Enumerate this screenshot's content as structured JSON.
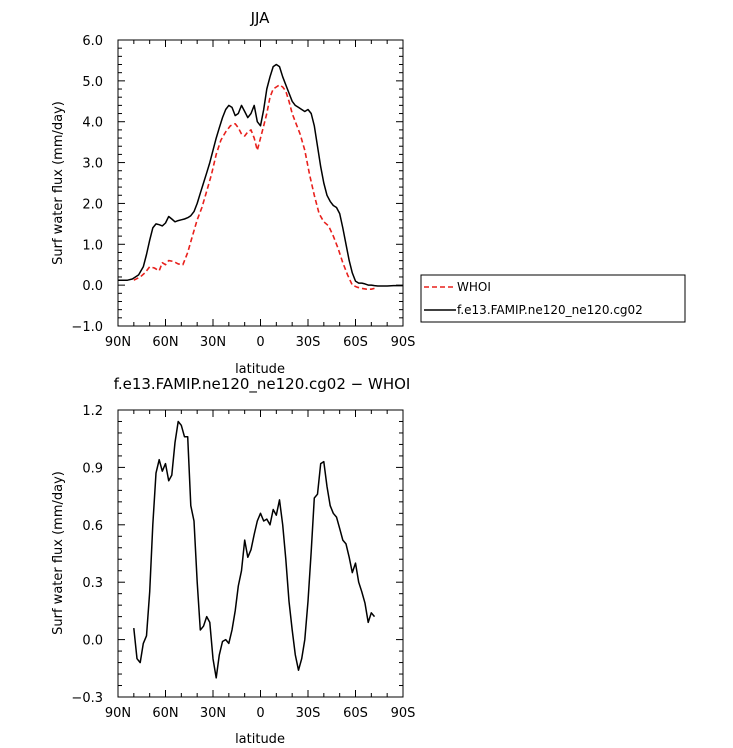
{
  "chart_data": [
    {
      "type": "line",
      "title": "JJA",
      "xlabel": "latitude",
      "ylabel": "Surf water flux (mm/day)",
      "xlim": [
        90,
        -90
      ],
      "ylim": [
        -1.0,
        6.0
      ],
      "xticks": [
        90,
        60,
        30,
        0,
        -30,
        -60,
        -90
      ],
      "xtick_labels": [
        "90N",
        "60N",
        "30N",
        "0",
        "30S",
        "60S",
        "90S"
      ],
      "yticks": [
        -1.0,
        0.0,
        1.0,
        2.0,
        3.0,
        4.0,
        5.0,
        6.0
      ],
      "ytick_labels": [
        "−1.0",
        "0.0",
        "1.0",
        "2.0",
        "3.0",
        "4.0",
        "5.0",
        "6.0"
      ],
      "legend_position": "right",
      "series": [
        {
          "name": "WHOI",
          "color": "#e8201c",
          "style": "dashed",
          "x": [
            80,
            76,
            73,
            70,
            67,
            64,
            62,
            60,
            58,
            55,
            52,
            49,
            46,
            43,
            40,
            37,
            34,
            31,
            28,
            25,
            22,
            19,
            16,
            14,
            12,
            10,
            8,
            6,
            4,
            2,
            0,
            -2,
            -4,
            -6,
            -8,
            -10,
            -12,
            -14,
            -16,
            -18,
            -20,
            -22,
            -25,
            -28,
            -31,
            -34,
            -37,
            -40,
            -43,
            -46,
            -49,
            -52,
            -55,
            -58,
            -61,
            -64,
            -67,
            -70,
            -72
          ],
          "values": [
            0.12,
            0.2,
            0.3,
            0.45,
            0.42,
            0.35,
            0.55,
            0.5,
            0.6,
            0.58,
            0.52,
            0.5,
            0.8,
            1.2,
            1.6,
            1.9,
            2.3,
            2.7,
            3.2,
            3.55,
            3.75,
            3.9,
            3.95,
            3.85,
            3.7,
            3.65,
            3.75,
            3.8,
            3.6,
            3.3,
            3.6,
            3.9,
            4.2,
            4.6,
            4.8,
            4.85,
            4.9,
            4.85,
            4.75,
            4.5,
            4.2,
            4.0,
            3.7,
            3.3,
            2.7,
            2.2,
            1.75,
            1.55,
            1.45,
            1.2,
            0.9,
            0.55,
            0.25,
            0.0,
            -0.05,
            -0.08,
            -0.1,
            -0.1,
            -0.08
          ]
        },
        {
          "name": "f.e13.FAMIP.ne120_ne120.cg02",
          "color": "#000000",
          "style": "solid",
          "x": [
            90,
            84,
            81,
            79,
            77,
            74,
            72,
            70,
            68,
            66,
            64,
            62,
            60,
            58,
            56,
            54,
            52,
            50,
            48,
            46,
            44,
            42,
            40,
            38,
            36,
            34,
            32,
            30,
            28,
            26,
            24,
            22,
            20,
            18,
            16,
            14,
            12,
            10,
            8,
            6,
            4,
            2,
            0,
            -2,
            -4,
            -6,
            -8,
            -10,
            -12,
            -14,
            -16,
            -18,
            -20,
            -22,
            -24,
            -26,
            -28,
            -30,
            -32,
            -34,
            -36,
            -38,
            -40,
            -42,
            -44,
            -46,
            -48,
            -50,
            -52,
            -54,
            -56,
            -58,
            -60,
            -62,
            -64,
            -66,
            -68,
            -70,
            -72,
            -74,
            -76,
            -80,
            -84,
            -90
          ],
          "values": [
            0.12,
            0.12,
            0.15,
            0.2,
            0.25,
            0.45,
            0.75,
            1.1,
            1.4,
            1.5,
            1.48,
            1.45,
            1.52,
            1.68,
            1.62,
            1.55,
            1.58,
            1.6,
            1.62,
            1.65,
            1.7,
            1.8,
            2.0,
            2.25,
            2.5,
            2.75,
            3.0,
            3.3,
            3.6,
            3.85,
            4.1,
            4.3,
            4.4,
            4.35,
            4.15,
            4.2,
            4.4,
            4.25,
            4.1,
            4.2,
            4.4,
            4.0,
            3.9,
            4.3,
            4.8,
            5.1,
            5.35,
            5.4,
            5.35,
            5.1,
            4.9,
            4.7,
            4.5,
            4.4,
            4.35,
            4.3,
            4.25,
            4.3,
            4.2,
            3.9,
            3.4,
            2.9,
            2.5,
            2.2,
            2.05,
            1.95,
            1.9,
            1.75,
            1.4,
            1.0,
            0.6,
            0.3,
            0.1,
            0.05,
            0.05,
            0.03,
            0.0,
            0.0,
            -0.01,
            -0.02,
            -0.02,
            -0.02,
            -0.01,
            -0.01
          ]
        }
      ]
    },
    {
      "type": "line",
      "title": "f.e13.FAMIP.ne120_ne120.cg02 − WHOI",
      "xlabel": "latitude",
      "ylabel": "Surf water flux (mm/day)",
      "xlim": [
        90,
        -90
      ],
      "ylim": [
        -0.3,
        1.2
      ],
      "xticks": [
        90,
        60,
        30,
        0,
        -30,
        -60,
        -90
      ],
      "xtick_labels": [
        "90N",
        "60N",
        "30N",
        "0",
        "30S",
        "60S",
        "90S"
      ],
      "yticks": [
        -0.3,
        0.0,
        0.3,
        0.6,
        0.9,
        1.2
      ],
      "ytick_labels": [
        "−0.3",
        "0.0",
        "0.3",
        "0.6",
        "0.9",
        "1.2"
      ],
      "series": [
        {
          "color": "#000000",
          "style": "solid",
          "x": [
            80,
            78,
            76,
            74,
            72,
            70,
            68,
            66,
            64,
            62,
            60,
            58,
            56,
            54,
            52,
            50,
            48,
            46,
            44,
            42,
            40,
            38,
            36,
            34,
            32,
            30,
            28,
            26,
            24,
            22,
            20,
            18,
            16,
            14,
            12,
            10,
            8,
            6,
            4,
            2,
            0,
            -2,
            -4,
            -6,
            -8,
            -10,
            -12,
            -14,
            -16,
            -18,
            -20,
            -22,
            -24,
            -26,
            -28,
            -30,
            -32,
            -34,
            -36,
            -38,
            -40,
            -42,
            -44,
            -46,
            -48,
            -50,
            -52,
            -54,
            -56,
            -58,
            -60,
            -62,
            -64,
            -66,
            -68,
            -70,
            -72
          ],
          "values": [
            0.06,
            -0.1,
            -0.12,
            -0.02,
            0.02,
            0.25,
            0.6,
            0.87,
            0.94,
            0.88,
            0.92,
            0.83,
            0.86,
            1.03,
            1.14,
            1.12,
            1.06,
            1.06,
            0.7,
            0.62,
            0.3,
            0.05,
            0.07,
            0.12,
            0.09,
            -0.1,
            -0.2,
            -0.08,
            -0.01,
            0.0,
            -0.02,
            0.05,
            0.15,
            0.28,
            0.36,
            0.52,
            0.43,
            0.47,
            0.55,
            0.62,
            0.66,
            0.62,
            0.63,
            0.6,
            0.68,
            0.65,
            0.73,
            0.6,
            0.42,
            0.2,
            0.05,
            -0.08,
            -0.16,
            -0.1,
            0.0,
            0.2,
            0.46,
            0.74,
            0.76,
            0.92,
            0.93,
            0.8,
            0.7,
            0.66,
            0.64,
            0.58,
            0.52,
            0.5,
            0.43,
            0.35,
            0.4,
            0.3,
            0.25,
            0.19,
            0.09,
            0.14,
            0.12
          ]
        }
      ]
    }
  ]
}
